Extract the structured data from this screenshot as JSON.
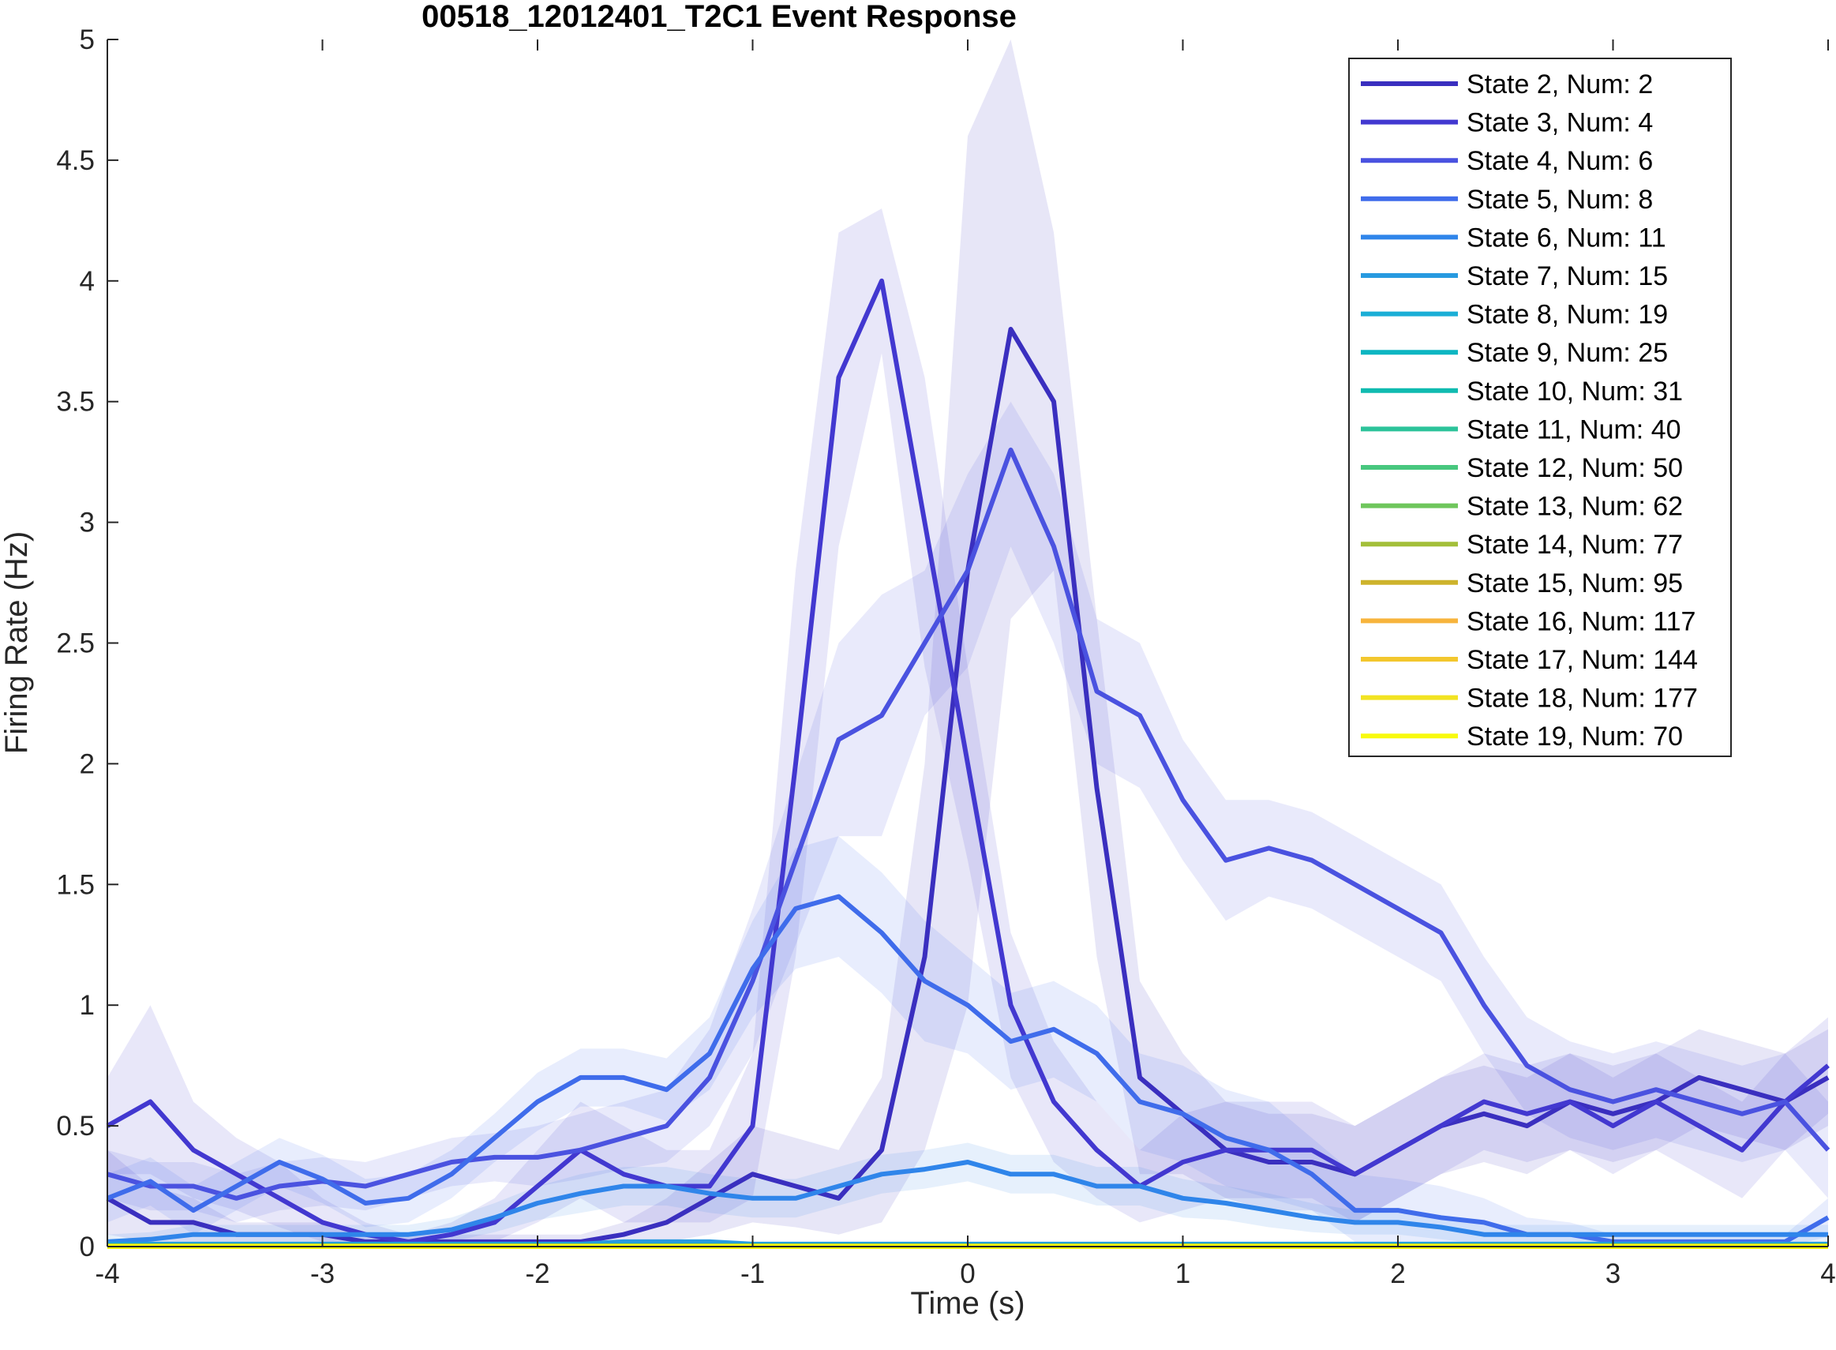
{
  "chart_data": {
    "type": "line",
    "title": "00518_12012401_T2C1 Event Response",
    "xlabel": "Time (s)",
    "ylabel": "Firing Rate (Hz)",
    "xlim": [
      -4,
      4
    ],
    "ylim": [
      0,
      5
    ],
    "xticks": [
      -4,
      -3,
      -2,
      -1,
      0,
      1,
      2,
      3,
      4
    ],
    "yticks": [
      0,
      0.5,
      1,
      1.5,
      2,
      2.5,
      3,
      3.5,
      4,
      4.5,
      5
    ],
    "grid": false,
    "legend_position": "top-right",
    "x": [
      -4.0,
      -3.8,
      -3.6,
      -3.4,
      -3.2,
      -3.0,
      -2.8,
      -2.6,
      -2.4,
      -2.2,
      -2.0,
      -1.8,
      -1.6,
      -1.4,
      -1.2,
      -1.0,
      -0.8,
      -0.6,
      -0.4,
      -0.2,
      0.0,
      0.2,
      0.4,
      0.6,
      0.8,
      1.0,
      1.2,
      1.4,
      1.6,
      1.8,
      2.0,
      2.2,
      2.4,
      2.6,
      2.8,
      3.0,
      3.2,
      3.4,
      3.6,
      3.8,
      4.0
    ],
    "series": [
      {
        "name": "State 2, Num: 2",
        "color": "#3a2fbf",
        "values": [
          0.2,
          0.1,
          0.1,
          0.05,
          0.05,
          0.05,
          0.02,
          0.02,
          0.02,
          0.02,
          0.02,
          0.02,
          0.05,
          0.1,
          0.2,
          0.3,
          0.25,
          0.2,
          0.4,
          1.2,
          2.8,
          3.8,
          3.5,
          1.9,
          0.7,
          0.55,
          0.4,
          0.35,
          0.35,
          0.3,
          0.4,
          0.5,
          0.55,
          0.5,
          0.6,
          0.55,
          0.6,
          0.7,
          0.65,
          0.6,
          0.7
        ],
        "upper": [
          0.4,
          0.25,
          0.2,
          0.1,
          0.1,
          0.1,
          0.05,
          0.05,
          0.05,
          0.05,
          0.05,
          0.05,
          0.1,
          0.2,
          0.35,
          0.5,
          0.45,
          0.4,
          0.7,
          2.0,
          4.6,
          5.0,
          4.2,
          2.6,
          1.1,
          0.8,
          0.6,
          0.55,
          0.55,
          0.5,
          0.6,
          0.7,
          0.75,
          0.7,
          0.8,
          0.75,
          0.8,
          0.9,
          0.85,
          0.8,
          0.9
        ],
        "lower": [
          0.05,
          0.02,
          0.02,
          0.0,
          0.0,
          0.0,
          0.0,
          0.0,
          0.0,
          0.0,
          0.0,
          0.0,
          0.0,
          0.02,
          0.05,
          0.1,
          0.08,
          0.05,
          0.1,
          0.4,
          1.0,
          2.6,
          2.8,
          1.2,
          0.3,
          0.3,
          0.2,
          0.15,
          0.15,
          0.1,
          0.2,
          0.3,
          0.35,
          0.3,
          0.4,
          0.35,
          0.4,
          0.5,
          0.45,
          0.4,
          0.5
        ]
      },
      {
        "name": "State 3, Num: 4",
        "color": "#4238d0",
        "values": [
          0.5,
          0.6,
          0.4,
          0.3,
          0.2,
          0.1,
          0.05,
          0.02,
          0.05,
          0.1,
          0.25,
          0.4,
          0.3,
          0.25,
          0.25,
          0.5,
          2.0,
          3.6,
          4.0,
          3.0,
          2.0,
          1.0,
          0.6,
          0.4,
          0.25,
          0.35,
          0.4,
          0.4,
          0.4,
          0.3,
          0.4,
          0.5,
          0.6,
          0.55,
          0.6,
          0.5,
          0.6,
          0.5,
          0.4,
          0.6,
          0.75
        ],
        "upper": [
          0.7,
          1.0,
          0.6,
          0.45,
          0.35,
          0.2,
          0.1,
          0.05,
          0.1,
          0.2,
          0.4,
          0.6,
          0.5,
          0.4,
          0.4,
          0.8,
          2.8,
          4.2,
          4.3,
          3.6,
          2.4,
          1.3,
          0.85,
          0.6,
          0.4,
          0.55,
          0.6,
          0.6,
          0.6,
          0.5,
          0.6,
          0.7,
          0.8,
          0.75,
          0.8,
          0.7,
          0.8,
          0.7,
          0.6,
          0.8,
          0.95
        ],
        "lower": [
          0.3,
          0.3,
          0.2,
          0.15,
          0.08,
          0.02,
          0.0,
          0.0,
          0.0,
          0.02,
          0.1,
          0.2,
          0.1,
          0.1,
          0.1,
          0.2,
          1.2,
          2.9,
          3.7,
          2.4,
          1.6,
          0.7,
          0.35,
          0.2,
          0.1,
          0.15,
          0.2,
          0.2,
          0.2,
          0.1,
          0.2,
          0.3,
          0.4,
          0.35,
          0.4,
          0.3,
          0.4,
          0.3,
          0.2,
          0.4,
          0.55
        ]
      },
      {
        "name": "State 4, Num: 6",
        "color": "#4a52e0",
        "values": [
          0.3,
          0.25,
          0.25,
          0.2,
          0.25,
          0.27,
          0.25,
          0.3,
          0.35,
          0.37,
          0.37,
          0.4,
          0.45,
          0.5,
          0.7,
          1.1,
          1.6,
          2.1,
          2.2,
          2.5,
          2.8,
          3.3,
          2.9,
          2.3,
          2.2,
          1.85,
          1.6,
          1.65,
          1.6,
          1.5,
          1.4,
          1.3,
          1.0,
          0.75,
          0.65,
          0.6,
          0.65,
          0.6,
          0.55,
          0.6,
          0.4
        ],
        "upper": [
          0.4,
          0.35,
          0.35,
          0.3,
          0.35,
          0.37,
          0.35,
          0.4,
          0.45,
          0.47,
          0.5,
          0.55,
          0.6,
          0.65,
          0.9,
          1.4,
          1.95,
          2.5,
          2.7,
          2.8,
          3.2,
          3.5,
          3.2,
          2.6,
          2.5,
          2.1,
          1.85,
          1.85,
          1.8,
          1.7,
          1.6,
          1.5,
          1.2,
          0.95,
          0.85,
          0.8,
          0.85,
          0.8,
          0.75,
          0.8,
          0.6
        ],
        "lower": [
          0.2,
          0.15,
          0.15,
          0.1,
          0.15,
          0.17,
          0.15,
          0.2,
          0.25,
          0.27,
          0.25,
          0.28,
          0.32,
          0.35,
          0.5,
          0.8,
          1.25,
          1.7,
          1.7,
          2.2,
          2.4,
          2.9,
          2.5,
          2.0,
          1.9,
          1.6,
          1.35,
          1.45,
          1.4,
          1.3,
          1.2,
          1.1,
          0.8,
          0.55,
          0.45,
          0.4,
          0.45,
          0.4,
          0.35,
          0.4,
          0.2
        ]
      },
      {
        "name": "State 5, Num: 8",
        "color": "#3f6ceb",
        "values": [
          0.2,
          0.27,
          0.15,
          0.25,
          0.35,
          0.28,
          0.18,
          0.2,
          0.3,
          0.45,
          0.6,
          0.7,
          0.7,
          0.65,
          0.8,
          1.15,
          1.4,
          1.45,
          1.3,
          1.1,
          1.0,
          0.85,
          0.9,
          0.8,
          0.6,
          0.55,
          0.45,
          0.4,
          0.3,
          0.15,
          0.15,
          0.12,
          0.1,
          0.05,
          0.05,
          0.02,
          0.02,
          0.02,
          0.02,
          0.02,
          0.12
        ],
        "upper": [
          0.3,
          0.37,
          0.25,
          0.35,
          0.45,
          0.38,
          0.28,
          0.3,
          0.4,
          0.55,
          0.72,
          0.82,
          0.82,
          0.78,
          0.95,
          1.35,
          1.65,
          1.7,
          1.55,
          1.35,
          1.2,
          1.05,
          1.1,
          1.0,
          0.8,
          0.75,
          0.65,
          0.6,
          0.45,
          0.3,
          0.28,
          0.25,
          0.2,
          0.12,
          0.1,
          0.05,
          0.05,
          0.05,
          0.05,
          0.05,
          0.2
        ],
        "lower": [
          0.1,
          0.17,
          0.05,
          0.15,
          0.25,
          0.18,
          0.08,
          0.1,
          0.2,
          0.35,
          0.48,
          0.58,
          0.58,
          0.52,
          0.65,
          0.95,
          1.15,
          1.2,
          1.05,
          0.85,
          0.8,
          0.65,
          0.7,
          0.6,
          0.4,
          0.35,
          0.25,
          0.2,
          0.15,
          0.02,
          0.02,
          0.0,
          0.0,
          0.0,
          0.0,
          0.0,
          0.0,
          0.0,
          0.0,
          0.0,
          0.04
        ]
      },
      {
        "name": "State 6, Num: 11",
        "color": "#2f85ea",
        "values": [
          0.02,
          0.03,
          0.05,
          0.05,
          0.05,
          0.05,
          0.05,
          0.05,
          0.07,
          0.12,
          0.18,
          0.22,
          0.25,
          0.25,
          0.22,
          0.2,
          0.2,
          0.25,
          0.3,
          0.32,
          0.35,
          0.3,
          0.3,
          0.25,
          0.25,
          0.2,
          0.18,
          0.15,
          0.12,
          0.1,
          0.1,
          0.08,
          0.05,
          0.05,
          0.05,
          0.05,
          0.05,
          0.05,
          0.05,
          0.05,
          0.05
        ],
        "upper": [
          0.05,
          0.06,
          0.09,
          0.09,
          0.09,
          0.09,
          0.09,
          0.09,
          0.12,
          0.18,
          0.25,
          0.3,
          0.33,
          0.33,
          0.3,
          0.28,
          0.28,
          0.33,
          0.38,
          0.4,
          0.43,
          0.38,
          0.38,
          0.33,
          0.33,
          0.28,
          0.25,
          0.22,
          0.18,
          0.15,
          0.15,
          0.13,
          0.09,
          0.09,
          0.09,
          0.09,
          0.09,
          0.09,
          0.09,
          0.09,
          0.09
        ],
        "lower": [
          0.0,
          0.0,
          0.01,
          0.01,
          0.01,
          0.01,
          0.01,
          0.01,
          0.02,
          0.06,
          0.11,
          0.14,
          0.17,
          0.17,
          0.14,
          0.12,
          0.12,
          0.17,
          0.22,
          0.24,
          0.27,
          0.22,
          0.22,
          0.17,
          0.17,
          0.12,
          0.11,
          0.08,
          0.06,
          0.05,
          0.05,
          0.03,
          0.01,
          0.01,
          0.01,
          0.01,
          0.01,
          0.01,
          0.01,
          0.01,
          0.01
        ]
      },
      {
        "name": "State 7, Num: 15",
        "color": "#279ae0",
        "values": [
          0.01,
          0.01,
          0.01,
          0.01,
          0.01,
          0.01,
          0.01,
          0.01,
          0.01,
          0.01,
          0.01,
          0.01,
          0.02,
          0.02,
          0.02,
          0.01,
          0.01,
          0.01,
          0.01,
          0.01,
          0.01,
          0.01,
          0.01,
          0.01,
          0.01,
          0.01,
          0.01,
          0.01,
          0.01,
          0.01,
          0.01,
          0.01,
          0.01,
          0.01,
          0.01,
          0.01,
          0.01,
          0.01,
          0.01,
          0.01,
          0.01
        ],
        "upper": [
          0.02,
          0.02,
          0.02,
          0.02,
          0.02,
          0.02,
          0.02,
          0.02,
          0.02,
          0.02,
          0.02,
          0.02,
          0.03,
          0.03,
          0.03,
          0.02,
          0.02,
          0.02,
          0.02,
          0.02,
          0.02,
          0.02,
          0.02,
          0.02,
          0.02,
          0.02,
          0.02,
          0.02,
          0.02,
          0.02,
          0.02,
          0.02,
          0.02,
          0.02,
          0.02,
          0.02,
          0.02,
          0.02,
          0.02,
          0.02,
          0.02
        ],
        "lower": [
          0.0,
          0.0,
          0.0,
          0.0,
          0.0,
          0.0,
          0.0,
          0.0,
          0.0,
          0.0,
          0.0,
          0.0,
          0.01,
          0.01,
          0.01,
          0.0,
          0.0,
          0.0,
          0.0,
          0.0,
          0.0,
          0.0,
          0.0,
          0.0,
          0.0,
          0.0,
          0.0,
          0.0,
          0.0,
          0.0,
          0.0,
          0.0,
          0.0,
          0.0,
          0.0,
          0.0,
          0.0,
          0.0,
          0.0,
          0.0,
          0.0
        ]
      },
      {
        "name": "State 8, Num: 19",
        "color": "#1aaed6",
        "constant": 0.005
      },
      {
        "name": "State 9, Num: 25",
        "color": "#0cb6c2",
        "constant": 0.004
      },
      {
        "name": "State 10, Num: 31",
        "color": "#10bbb0",
        "constant": 0.004
      },
      {
        "name": "State 11, Num: 40",
        "color": "#2cc39a",
        "constant": 0.003
      },
      {
        "name": "State 12, Num: 50",
        "color": "#48c77e",
        "constant": 0.003
      },
      {
        "name": "State 13, Num: 62",
        "color": "#6fc65c",
        "constant": 0.002
      },
      {
        "name": "State 14, Num: 77",
        "color": "#a3bf3a",
        "constant": 0.002
      },
      {
        "name": "State 15, Num: 95",
        "color": "#cdb32c",
        "constant": 0.002
      },
      {
        "name": "State 16, Num: 117",
        "color": "#f7b43c",
        "constant": 0.001
      },
      {
        "name": "State 17, Num: 144",
        "color": "#f3c72e",
        "constant": 0.001
      },
      {
        "name": "State 18, Num: 177",
        "color": "#f2e322",
        "constant": 0.001
      },
      {
        "name": "State 19, Num: 70",
        "color": "#f8fa0d",
        "constant": 0.0
      }
    ]
  }
}
